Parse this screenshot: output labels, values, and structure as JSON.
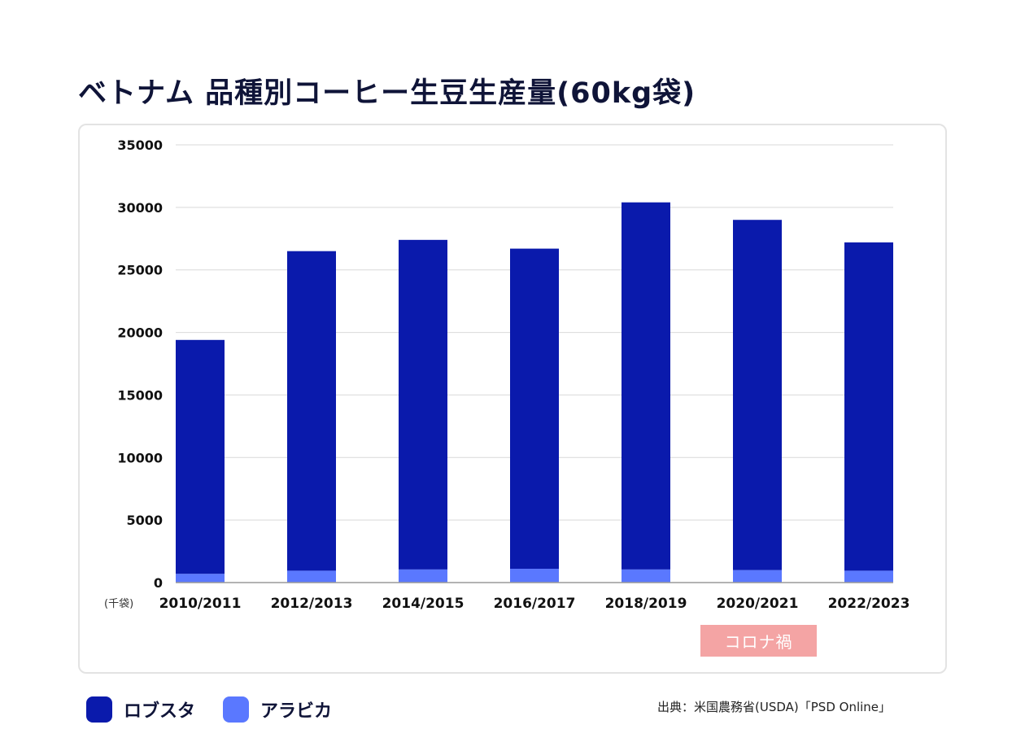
{
  "title": "ベトナム 品種別コーヒー生豆生産量(60kg袋)",
  "chart_data": {
    "type": "bar",
    "stacked": true,
    "categories": [
      "2010/2011",
      "2012/2013",
      "2014/2015",
      "2016/2017",
      "2018/2019",
      "2020/2021",
      "2022/2023"
    ],
    "series": [
      {
        "name": "アラビカ",
        "color": "#5a78ff",
        "values": [
          700,
          950,
          1050,
          1100,
          1050,
          1000,
          950
        ]
      },
      {
        "name": "ロブスタ",
        "color": "#0a1aac",
        "values": [
          18700,
          25550,
          26350,
          25600,
          29350,
          28000,
          26250
        ]
      }
    ],
    "ylim": [
      0,
      35000
    ],
    "yticks": [
      "0",
      "5000",
      "10000",
      "15000",
      "20000",
      "25000",
      "30000",
      "35000"
    ],
    "ytick_values": [
      0,
      5000,
      10000,
      15000,
      20000,
      25000,
      30000,
      35000
    ],
    "ylabel": "(千袋)",
    "grid": true,
    "annotation": {
      "text": "コロナ禍",
      "category": "2020/2021"
    }
  },
  "legend": {
    "items": [
      {
        "label": "ロブスタ",
        "color": "#0a1aac"
      },
      {
        "label": "アラビカ",
        "color": "#5a78ff"
      }
    ]
  },
  "source": "出典：米国農務省(USDA)「PSD Online」"
}
